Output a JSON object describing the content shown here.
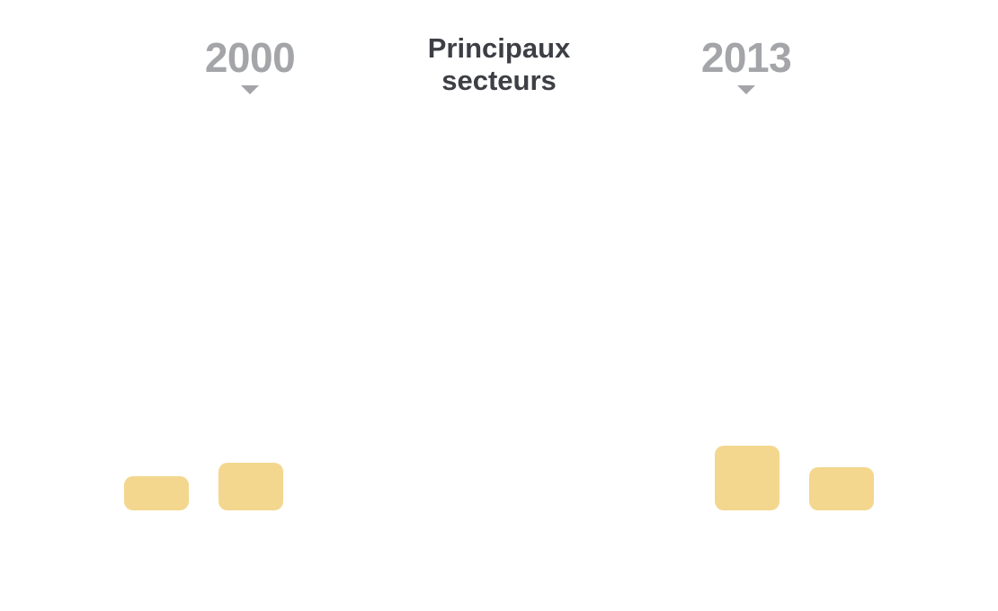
{
  "chart_data": {
    "type": "bar",
    "title": "Principaux secteurs",
    "groups": [
      {
        "year": "2000",
        "values": [
          38,
          53
        ]
      },
      {
        "year": "2013",
        "values": [
          72,
          48
        ]
      }
    ],
    "colors": {
      "bar": "#f3d78e",
      "year_text": "#a4a5a8",
      "title_text": "#3d3f45"
    }
  }
}
